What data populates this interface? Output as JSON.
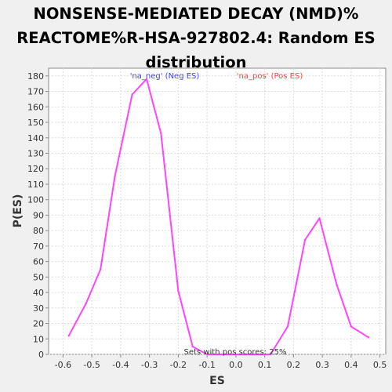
{
  "chart_data": {
    "type": "line",
    "title_lines": [
      "NONSENSE-MEDIATED DECAY (NMD)%",
      "REACTOME%R-HSA-927802.4: Random ES",
      "distribution"
    ],
    "xlabel": "ES",
    "ylabel": "P(ES)",
    "xlim": [
      -0.65,
      0.52
    ],
    "ylim": [
      0,
      185
    ],
    "x_ticks": [
      -0.6,
      -0.5,
      -0.4,
      -0.3,
      -0.2,
      -0.1,
      0.0,
      0.1,
      0.2,
      0.3,
      0.4,
      0.5
    ],
    "x_tick_labels": [
      "-0.6",
      "-0.5",
      "-0.4",
      "-0.3",
      "-0.2",
      "-0.1",
      "0.0",
      "0.1",
      "0.2",
      "0.3",
      "0.4",
      "0.5"
    ],
    "y_ticks": [
      0,
      10,
      20,
      30,
      40,
      50,
      60,
      70,
      80,
      90,
      100,
      110,
      120,
      130,
      140,
      150,
      160,
      170,
      180
    ],
    "y_tick_labels": [
      "0",
      "10",
      "20",
      "30",
      "40",
      "50",
      "60",
      "70",
      "80",
      "90",
      "100",
      "110",
      "120",
      "130",
      "140",
      "150",
      "160",
      "170",
      "180"
    ],
    "grid": true,
    "series": [
      {
        "color": "#ff44ff",
        "x": [
          -0.58,
          -0.52,
          -0.47,
          -0.42,
          -0.36,
          -0.31,
          -0.26,
          -0.2,
          -0.15,
          -0.1,
          0.12,
          0.18,
          0.24,
          0.29,
          0.35,
          0.4,
          0.46
        ],
        "y": [
          12,
          33,
          55,
          115,
          168,
          178,
          143,
          41,
          5,
          0,
          0,
          18,
          74,
          88,
          45,
          18,
          11
        ]
      }
    ],
    "annotations": [
      {
        "text": "'na_neg' (Neg ES)",
        "color": "#4040ff"
      },
      {
        "text": "'na_pos' (Pos ES)",
        "color": "#ff4040"
      },
      {
        "text": "Sets with pos scores: 25%",
        "color": "#333333"
      }
    ]
  }
}
